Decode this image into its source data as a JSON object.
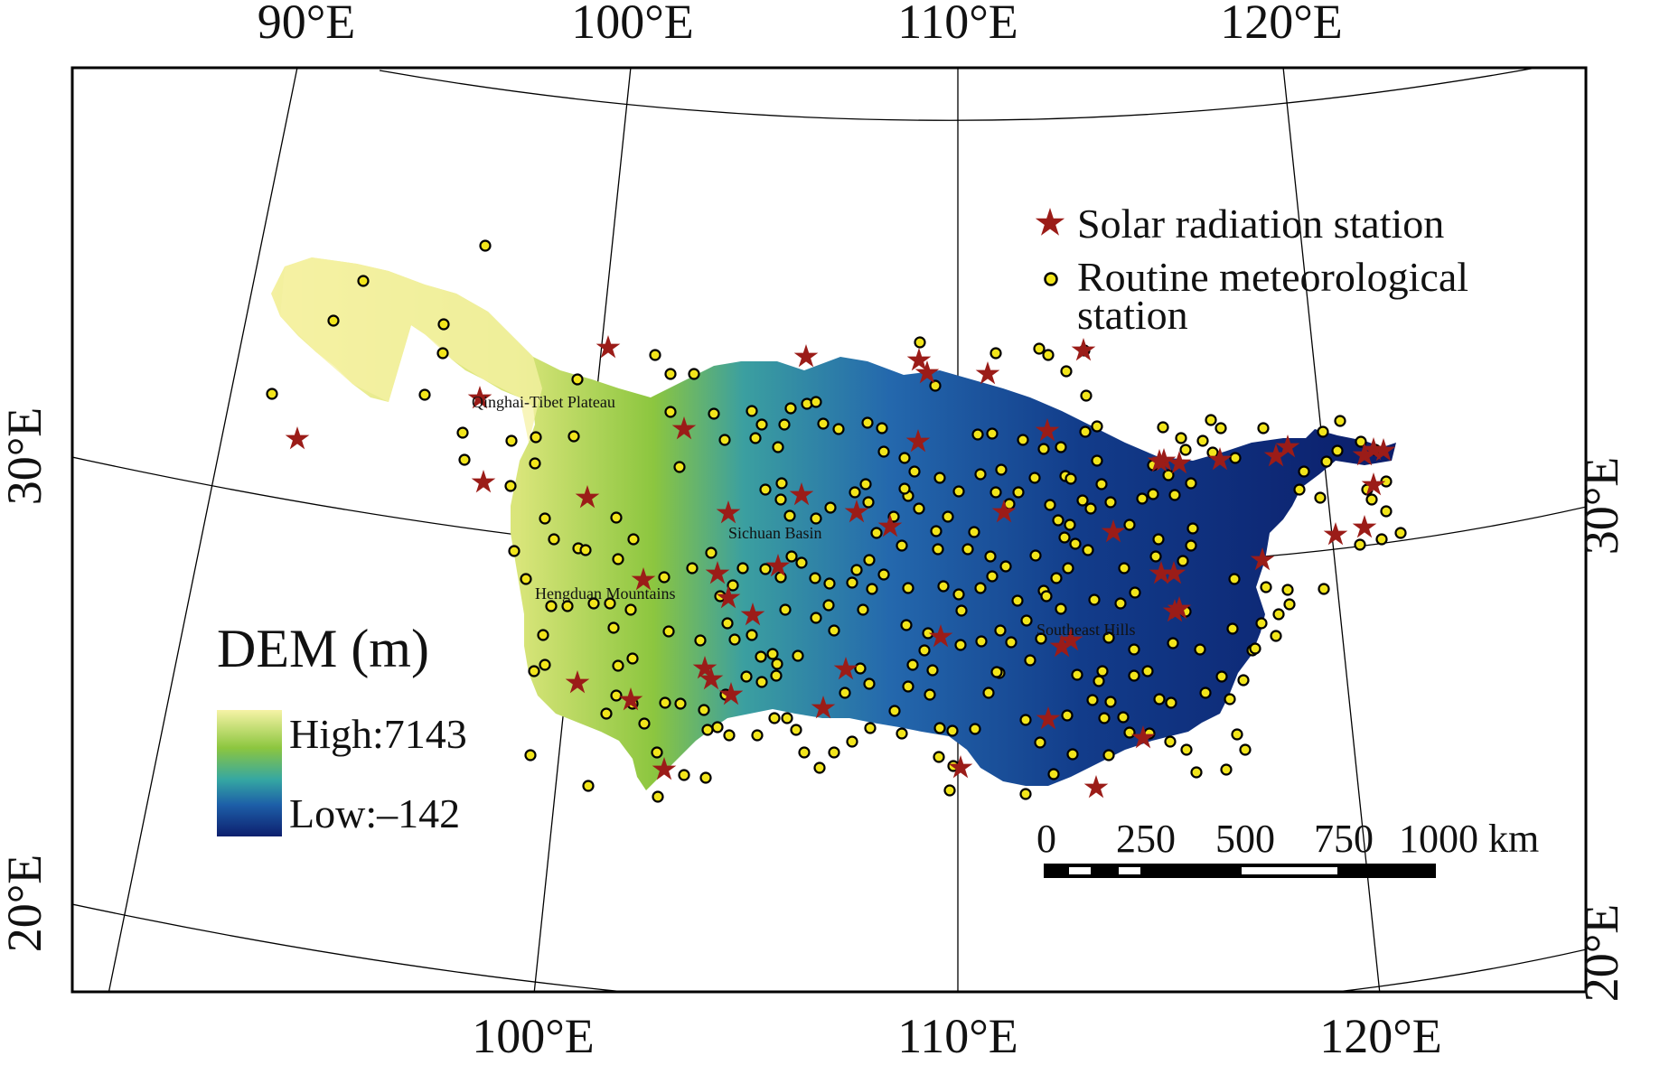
{
  "map": {
    "top_labels": [
      "90°E",
      "100°E",
      "110°E",
      "120°E"
    ],
    "bottom_labels": [
      "100°E",
      "110°E",
      "120°E"
    ],
    "left_labels": [
      "30°E",
      "20°E"
    ],
    "right_labels": [
      "30°E",
      "20°E"
    ]
  },
  "regions": {
    "qinghai": "Qinghai-Tibet Plateau",
    "sichuan": "Sichuan Basin",
    "hengduan": "Hengduan Mountains",
    "southeast": "Southeast Hills"
  },
  "legend": {
    "solar_label": "Solar radiation station",
    "routine_label_line1": "Routine meteorological",
    "routine_label_line2": "station"
  },
  "dem_legend": {
    "title": "DEM (m)",
    "high_label": "High:7143",
    "low_label": "Low:–142",
    "colors": [
      "#f6f3a6",
      "#8cc63f",
      "#35a7a2",
      "#1d5fa8",
      "#0d1f6e"
    ]
  },
  "scale_bar": {
    "labels": [
      "0",
      "250",
      "500",
      "750",
      "1000 km"
    ]
  },
  "colors": {
    "star": "#9b1c18",
    "dot": "#f2e51b",
    "frame": "#000000"
  }
}
